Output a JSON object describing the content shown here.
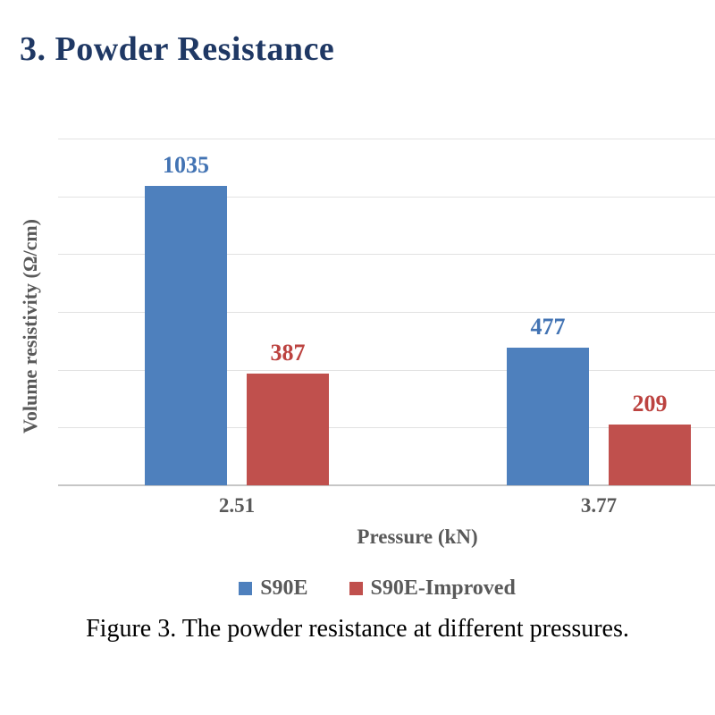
{
  "document": {
    "heading": "3. Powder Resistance",
    "caption": "Figure 3. The powder resistance at different pressures."
  },
  "chart_data": {
    "type": "bar",
    "title": "",
    "categories": [
      "2.51",
      "3.77"
    ],
    "series": [
      {
        "name": "S90E",
        "values": [
          1035,
          477
        ],
        "color": "#4E80BD",
        "label_color": "#4273B3"
      },
      {
        "name": "S90E-Improved",
        "values": [
          387,
          209
        ],
        "color": "#C0504D",
        "label_color": "#BC4340"
      }
    ],
    "xlabel": "Pressure (kN)",
    "ylabel": "Volume resistivity (Ω/cm)",
    "ylim": [
      0,
      1200
    ],
    "gridline_step": 200,
    "grid": "horizontal-only",
    "y_axis_tick_labels": "hidden",
    "data_labels": "above-bars",
    "legend_position": "bottom"
  },
  "colors": {
    "heading": "#1F3864",
    "axis_text": "#595959",
    "gridline": "#E2E2E2",
    "axis_line": "#C6C6C6",
    "caption": "#000000",
    "background": "#FFFFFF"
  }
}
